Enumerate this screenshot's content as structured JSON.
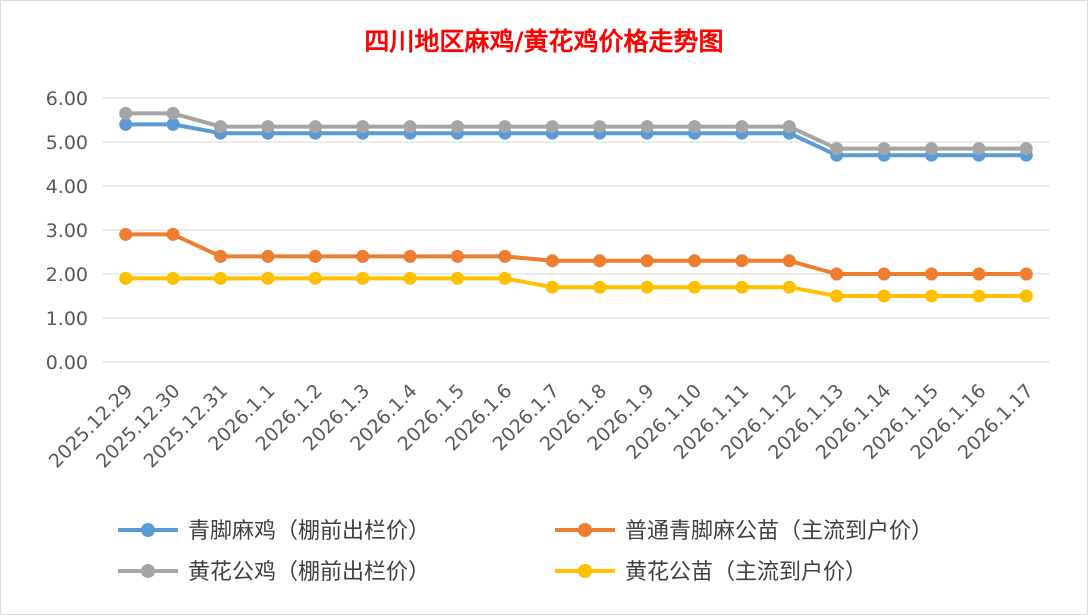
{
  "chart_data": {
    "type": "line",
    "title": "四川地区麻鸡/黄花鸡价格走势图",
    "title_color": "#ff0000",
    "categories": [
      "2025.12.29",
      "2025.12.30",
      "2025.12.31",
      "2026.1.1",
      "2026.1.2",
      "2026.1.3",
      "2026.1.4",
      "2026.1.5",
      "2026.1.6",
      "2026.1.7",
      "2026.1.8",
      "2026.1.9",
      "2026.1.10",
      "2026.1.11",
      "2026.1.12",
      "2026.1.13",
      "2026.1.14",
      "2026.1.15",
      "2026.1.16",
      "2026.1.17"
    ],
    "ylim": [
      0,
      6
    ],
    "yticks": [
      "0.00",
      "1.00",
      "2.00",
      "3.00",
      "4.00",
      "5.00",
      "6.00"
    ],
    "grid": true,
    "legend_position": "bottom",
    "series": [
      {
        "name": "青脚麻鸡（棚前出栏价）",
        "color": "#5b9bd5",
        "values": [
          5.4,
          5.4,
          5.2,
          5.2,
          5.2,
          5.2,
          5.2,
          5.2,
          5.2,
          5.2,
          5.2,
          5.2,
          5.2,
          5.2,
          5.2,
          4.7,
          4.7,
          4.7,
          4.7,
          4.7
        ]
      },
      {
        "name": "普通青脚麻公苗（主流到户价）",
        "color": "#ed7d31",
        "values": [
          2.9,
          2.9,
          2.4,
          2.4,
          2.4,
          2.4,
          2.4,
          2.4,
          2.4,
          2.3,
          2.3,
          2.3,
          2.3,
          2.3,
          2.3,
          2.0,
          2.0,
          2.0,
          2.0,
          2.0
        ]
      },
      {
        "name": "黄花公鸡（棚前出栏价）",
        "color": "#a5a5a5",
        "values": [
          5.65,
          5.65,
          5.35,
          5.35,
          5.35,
          5.35,
          5.35,
          5.35,
          5.35,
          5.35,
          5.35,
          5.35,
          5.35,
          5.35,
          5.35,
          4.85,
          4.85,
          4.85,
          4.85,
          4.85
        ]
      },
      {
        "name": "黄花公苗（主流到户价）",
        "color": "#ffc000",
        "values": [
          1.9,
          1.9,
          1.9,
          1.9,
          1.9,
          1.9,
          1.9,
          1.9,
          1.9,
          1.7,
          1.7,
          1.7,
          1.7,
          1.7,
          1.7,
          1.5,
          1.5,
          1.5,
          1.5,
          1.5
        ]
      }
    ]
  }
}
